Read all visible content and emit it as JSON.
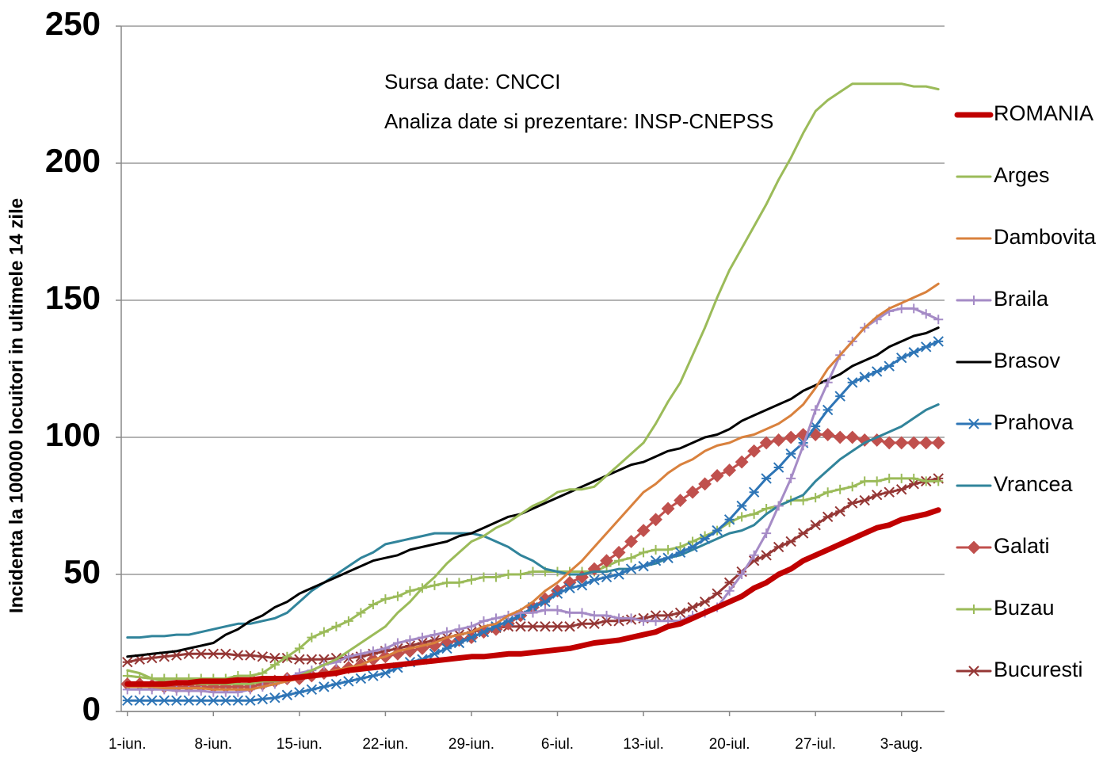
{
  "chart_data": {
    "type": "line",
    "annotations": [
      "Sursa date: CNCCI",
      "Analiza date si prezentare: INSP-CNEPSS"
    ],
    "y_label": "Incidenta la 100000 locuitori in ultimele 14 zile",
    "ylim": [
      0,
      250
    ],
    "yticks": [
      0,
      50,
      100,
      150,
      200,
      250
    ],
    "grid": true,
    "legend": "right",
    "categories": [
      "1-iun.",
      null,
      null,
      null,
      null,
      null,
      null,
      "8-iun.",
      null,
      null,
      null,
      null,
      null,
      null,
      "15-iun.",
      null,
      null,
      null,
      null,
      null,
      null,
      "22-iun.",
      null,
      null,
      null,
      null,
      null,
      null,
      "29-iun.",
      null,
      null,
      null,
      null,
      null,
      null,
      "6-iul.",
      null,
      null,
      null,
      null,
      null,
      null,
      "13-iul.",
      null,
      null,
      null,
      null,
      null,
      null,
      "20-iul.",
      null,
      null,
      null,
      null,
      null,
      null,
      "27-iul.",
      null,
      null,
      null,
      null,
      null,
      null,
      "3-aug.",
      null,
      null,
      null
    ],
    "series": [
      {
        "name": "ROMANIA",
        "color": "#c00000",
        "width": 7,
        "values": [
          10,
          10,
          10,
          10,
          10.5,
          10.5,
          11,
          11,
          11,
          11.5,
          11.5,
          12,
          12,
          12,
          12.5,
          13,
          13.5,
          14,
          15,
          15.5,
          16,
          16.5,
          17,
          17.5,
          18,
          18.5,
          19,
          19.5,
          20,
          20,
          20.5,
          21,
          21,
          21.5,
          22,
          22.5,
          23,
          24,
          25,
          25.5,
          26,
          27,
          28,
          29,
          31,
          32,
          34,
          36,
          38,
          40,
          42,
          45,
          47,
          50,
          52,
          55,
          57,
          59,
          61,
          63,
          65,
          67,
          68,
          70,
          71,
          72,
          73.5
        ]
      },
      {
        "name": "Arges",
        "color": "#9bbb59",
        "width": 3,
        "values": [
          15,
          14,
          12,
          11,
          11,
          10,
          10,
          10,
          10,
          10,
          10,
          11,
          11,
          12,
          13,
          15,
          17,
          19,
          22,
          25,
          28,
          31,
          36,
          40,
          45,
          49,
          54,
          58,
          62,
          64,
          67,
          69,
          72,
          75,
          77,
          80,
          81,
          81,
          82,
          86,
          90,
          94,
          98,
          105,
          113,
          120,
          130,
          140,
          151,
          161,
          169,
          177,
          185,
          194,
          202,
          211,
          219,
          223,
          226,
          229,
          229,
          229,
          229,
          229,
          228,
          228,
          227
        ]
      },
      {
        "name": "Dambovita",
        "color": "#d9813d",
        "width": 3,
        "values": [
          9,
          9,
          9,
          8.5,
          8.5,
          8.5,
          8.5,
          8,
          8,
          8,
          8,
          9,
          10,
          11,
          12,
          13,
          14,
          15,
          16,
          17,
          19,
          20,
          22,
          23,
          24,
          25,
          27,
          28,
          29,
          31,
          32,
          35,
          37,
          40,
          44,
          47,
          51,
          55,
          60,
          65,
          70,
          75,
          80,
          83,
          87,
          90,
          92,
          95,
          97,
          98,
          100,
          101,
          103,
          105,
          108,
          112,
          118,
          125,
          130,
          135,
          140,
          144,
          147,
          149,
          151,
          153,
          156
        ]
      },
      {
        "name": "Braila",
        "color": "#a58bc6",
        "width": 3,
        "marker": "plus",
        "values": [
          8,
          8,
          8,
          8,
          7.5,
          7.5,
          7.5,
          7,
          7,
          7,
          8,
          9,
          10,
          12,
          14,
          15,
          17,
          18,
          20,
          21,
          22,
          23,
          25,
          26,
          27,
          28,
          29,
          30,
          31,
          33,
          34,
          35,
          36,
          36,
          37,
          37,
          36,
          36,
          35,
          35,
          34,
          34,
          33,
          33,
          33,
          33,
          35,
          36,
          38,
          44,
          50,
          57,
          65,
          75,
          85,
          97,
          110,
          120,
          130,
          135,
          140,
          143,
          146,
          147,
          147,
          145,
          143
        ]
      },
      {
        "name": "Brasov",
        "color": "#000000",
        "width": 3,
        "values": [
          20,
          20.5,
          21,
          21.5,
          22,
          23,
          24,
          25,
          28,
          30,
          33,
          35,
          38,
          40,
          43,
          45,
          47,
          49,
          51,
          53,
          55,
          56,
          57,
          59,
          60,
          61,
          62,
          64,
          65,
          67,
          69,
          71,
          72,
          74,
          76,
          78,
          80,
          82,
          84,
          86,
          88,
          90,
          91,
          93,
          95,
          96,
          98,
          100,
          101,
          103,
          106,
          108,
          110,
          112,
          114,
          117,
          119,
          121,
          123,
          126,
          128,
          130,
          133,
          135,
          137,
          138,
          140
        ]
      },
      {
        "name": "Prahova",
        "color": "#2e75b6",
        "width": 3,
        "marker": "star",
        "values": [
          4,
          4,
          4,
          4,
          4,
          4,
          4,
          4,
          4,
          4,
          4,
          4.5,
          5,
          6,
          7,
          8,
          9,
          10,
          11,
          12,
          13,
          14,
          16,
          18,
          19,
          21,
          23,
          25,
          27,
          29,
          31,
          33,
          35,
          38,
          40,
          43,
          45,
          46,
          48,
          49,
          50,
          52,
          53,
          55,
          56,
          58,
          60,
          63,
          66,
          70,
          75,
          80,
          85,
          89,
          94,
          98,
          104,
          110,
          115,
          120,
          122,
          124,
          126,
          129,
          131,
          133,
          135
        ]
      },
      {
        "name": "Vrancea",
        "color": "#31849b",
        "width": 3,
        "values": [
          27,
          27,
          27.5,
          27.5,
          28,
          28,
          29,
          30,
          31,
          32,
          32,
          33,
          34,
          36,
          40,
          44,
          47,
          50,
          53,
          56,
          58,
          61,
          62,
          63,
          64,
          65,
          65,
          65,
          65,
          64,
          62,
          60,
          57,
          55,
          52,
          51,
          50,
          50,
          51,
          51,
          52,
          52,
          53,
          54,
          56,
          57,
          59,
          61,
          63,
          65,
          66,
          68,
          72,
          75,
          77,
          79,
          84,
          88,
          92,
          95,
          98,
          100,
          102,
          104,
          107,
          110,
          112
        ]
      },
      {
        "name": "Galati",
        "color": "#c0504d",
        "width": 3,
        "marker": "diamond",
        "values": [
          10,
          10,
          9.5,
          9,
          9,
          9,
          9,
          9,
          9,
          9,
          9,
          10,
          11,
          12,
          12,
          13,
          14,
          15,
          16,
          17,
          19,
          20,
          21,
          22,
          23,
          24,
          25,
          26,
          27,
          29,
          30,
          32,
          35,
          38,
          41,
          44,
          47,
          49,
          52,
          55,
          58,
          62,
          66,
          70,
          74,
          77,
          80,
          83,
          86,
          88,
          91,
          95,
          98,
          99,
          100,
          101,
          101,
          101,
          100,
          100,
          99,
          99,
          98,
          98,
          98,
          98,
          98
        ]
      },
      {
        "name": "Buzau",
        "color": "#9bbb59",
        "width": 3,
        "marker": "plus",
        "values": [
          13,
          12.5,
          12,
          12,
          12,
          12,
          12,
          12,
          12,
          13,
          13,
          14,
          17,
          20,
          23,
          27,
          29,
          31,
          33,
          36,
          39,
          41,
          42,
          44,
          45,
          46,
          47,
          47,
          48,
          49,
          49,
          50,
          50,
          51,
          51,
          51,
          51,
          51,
          51,
          53,
          55,
          56,
          58,
          59,
          59,
          60,
          62,
          64,
          66,
          69,
          71,
          72,
          74,
          75,
          77,
          77,
          78,
          80,
          81,
          82,
          84,
          84,
          85,
          85,
          85,
          84,
          84
        ]
      },
      {
        "name": "Bucuresti",
        "color": "#953735",
        "width": 3,
        "marker": "star",
        "values": [
          18,
          19,
          19.5,
          20,
          20.5,
          21,
          21,
          21,
          21,
          20.5,
          20.5,
          20,
          19.5,
          19.5,
          19,
          19,
          19,
          19.5,
          19.5,
          20,
          21,
          22,
          23,
          24,
          25,
          26,
          27,
          28,
          29,
          30,
          30.5,
          31,
          31,
          31,
          31,
          31,
          31,
          32,
          32,
          33,
          33,
          33.5,
          34,
          35,
          35,
          36,
          38,
          40,
          43,
          47,
          51,
          55,
          57,
          60,
          62,
          65,
          68,
          71,
          73,
          76,
          77,
          79,
          80,
          81,
          83,
          84,
          85
        ]
      }
    ]
  }
}
